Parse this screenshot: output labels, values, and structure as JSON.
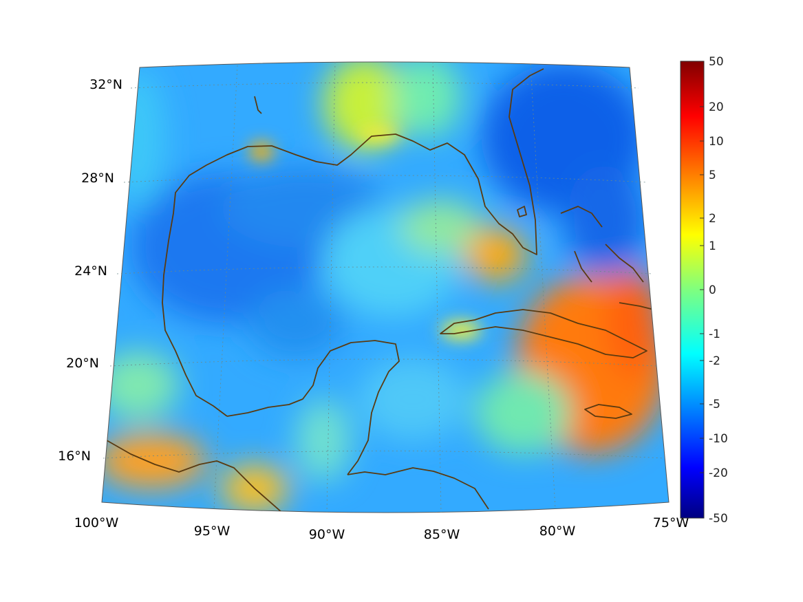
{
  "map": {
    "region": "Gulf of Mexico and Caribbean",
    "projection": "conic",
    "lon_range": [
      -100,
      -75
    ],
    "lat_range": [
      14,
      33
    ],
    "lon_ticks": [
      "100°W",
      "95°W",
      "90°W",
      "85°W",
      "80°W",
      "75°W"
    ],
    "lat_ticks": [
      "32°N",
      "28°N",
      "24°N",
      "20°N",
      "16°N"
    ],
    "grid": "dotted",
    "coastline_color": "#5a3a10",
    "field_colors": {
      "deep_blue": "#1060e8",
      "cyan": "#20e0ff",
      "yellow": "#f0f020",
      "orange": "#ff8c00"
    }
  },
  "colorbar": {
    "colormap": "jet",
    "tick_labels": [
      "50",
      "20",
      "10",
      "5",
      "2",
      "1",
      "0",
      "-1",
      "-2",
      "-5",
      "-10",
      "-20",
      "-50"
    ],
    "top_color": "#800000",
    "bottom_color": "#000080"
  }
}
